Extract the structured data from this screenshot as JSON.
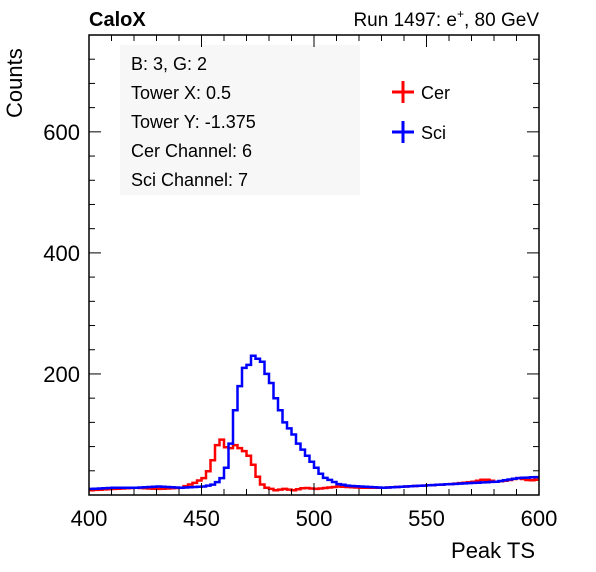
{
  "header": {
    "left": "CaloX",
    "right_prefix": "Run 1497: e",
    "right_sup": "+",
    "right_suffix": ", 80 GeV"
  },
  "info_box": {
    "lines": [
      "B: 3, G: 2",
      "Tower X: 0.5",
      "Tower Y: -1.375",
      "Cer Channel: 6",
      "Sci Channel: 7"
    ]
  },
  "colors": {
    "cer": "#ff0000",
    "sci": "#0000ff",
    "info_bg": "#f7f7f7"
  },
  "chart_data": {
    "type": "line",
    "title": "",
    "xlabel": "Peak TS",
    "ylabel": "Counts",
    "xlim": [
      400,
      600
    ],
    "ylim": [
      0,
      760
    ],
    "xticks": [
      400,
      450,
      500,
      550,
      600
    ],
    "yticks": [
      200,
      400,
      600
    ],
    "legend_position": "top-right",
    "series": [
      {
        "name": "Cer",
        "color": "#ff0000",
        "x": [
          400,
          410,
          420,
          430,
          440,
          446,
          450,
          453,
          455,
          457,
          459,
          461,
          463,
          465,
          467,
          469,
          471,
          473,
          475,
          478,
          482,
          486,
          490,
          495,
          500,
          505,
          510,
          520,
          530,
          540,
          550,
          560,
          570,
          575,
          580,
          585,
          590,
          595,
          600
        ],
        "y": [
          8,
          10,
          12,
          10,
          12,
          20,
          28,
          45,
          70,
          95,
          88,
          70,
          85,
          80,
          75,
          70,
          60,
          40,
          20,
          12,
          8,
          10,
          8,
          12,
          10,
          12,
          14,
          12,
          12,
          14,
          16,
          18,
          22,
          26,
          22,
          24,
          28,
          24,
          26
        ]
      },
      {
        "name": "Sci",
        "color": "#0000ff",
        "x": [
          400,
          410,
          420,
          430,
          440,
          450,
          455,
          458,
          460,
          462,
          464,
          466,
          468,
          470,
          472,
          474,
          476,
          478,
          480,
          482,
          484,
          486,
          488,
          490,
          492,
          494,
          496,
          498,
          500,
          503,
          506,
          510,
          515,
          520,
          530,
          540,
          550,
          560,
          570,
          580,
          590,
          600
        ],
        "y": [
          10,
          12,
          12,
          14,
          12,
          14,
          18,
          28,
          45,
          85,
          140,
          180,
          210,
          215,
          230,
          225,
          220,
          200,
          185,
          160,
          140,
          120,
          110,
          100,
          85,
          75,
          65,
          55,
          45,
          30,
          25,
          18,
          15,
          14,
          12,
          14,
          16,
          18,
          20,
          22,
          28,
          30
        ]
      }
    ]
  }
}
